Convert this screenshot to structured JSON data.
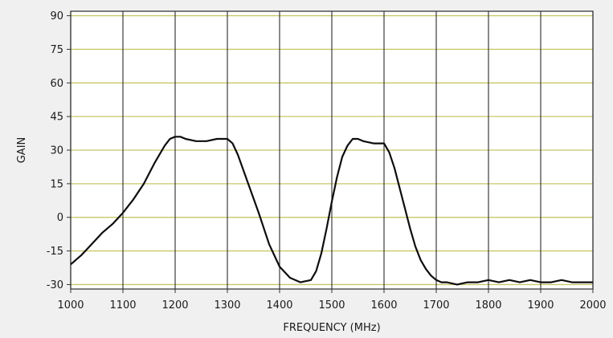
{
  "chart_data": {
    "type": "line",
    "title": "",
    "xlabel": "FREQUENCY (MHz)",
    "ylabel": "GAIN",
    "xlim": [
      1000,
      2000
    ],
    "ylim": [
      -32,
      92
    ],
    "grid": true,
    "x_ticks": [
      1000,
      1100,
      1200,
      1300,
      1400,
      1500,
      1600,
      1700,
      1800,
      1900,
      2000
    ],
    "y_ticks": [
      -30,
      -15,
      0,
      15,
      30,
      45,
      60,
      75,
      90
    ],
    "colors": {
      "plot_bg": "#ffffff",
      "h_grid": "#c8c86a",
      "v_grid": "#2a2a2a",
      "line": "#0d0d0d",
      "frame": "#2a2a2a"
    },
    "series": [
      {
        "x": [
          1000,
          1010,
          1020,
          1040,
          1060,
          1080,
          1100,
          1120,
          1140,
          1160,
          1180,
          1190,
          1200,
          1210,
          1220,
          1240,
          1260,
          1280,
          1300,
          1310,
          1320,
          1340,
          1360,
          1380,
          1400,
          1420,
          1440,
          1460,
          1470,
          1480,
          1490,
          1500,
          1510,
          1520,
          1530,
          1540,
          1550,
          1560,
          1580,
          1600,
          1610,
          1620,
          1630,
          1640,
          1650,
          1660,
          1670,
          1680,
          1690,
          1700,
          1710,
          1720,
          1740,
          1760,
          1780,
          1800,
          1820,
          1840,
          1860,
          1880,
          1900,
          1920,
          1940,
          1960,
          1980,
          2000
        ],
        "y": [
          -21,
          -19,
          -17,
          -12,
          -7,
          -3,
          2,
          8,
          15,
          24,
          32,
          35,
          36,
          36,
          35,
          34,
          34,
          35,
          35,
          33,
          28,
          15,
          2,
          -12,
          -22,
          -27,
          -29,
          -28,
          -24,
          -16,
          -5,
          7,
          18,
          27,
          32,
          35,
          35,
          34,
          33,
          33,
          29,
          22,
          13,
          4,
          -5,
          -13,
          -19,
          -23,
          -26,
          -28,
          -29,
          -29,
          -30,
          -29,
          -29,
          -28,
          -29,
          -28,
          -29,
          -28,
          -29,
          -29,
          -28,
          -29,
          -29,
          -29
        ]
      }
    ]
  }
}
